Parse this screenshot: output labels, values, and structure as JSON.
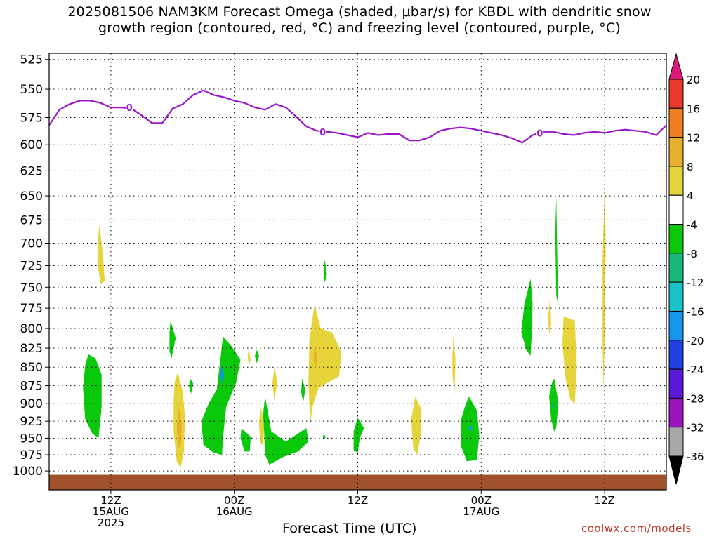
{
  "title_line1": "2025081506 NAM3KM Forecast Omega (shaded, μbar/s) for KBDL with dendritic snow",
  "title_line2": "growth region (contoured, red, °C) and freezing level (contoured, purple, °C)",
  "credit": "coolwx.com/models",
  "chart_data": {
    "type": "heatmap",
    "title": "2025081506 NAM3KM Forecast Omega (shaded, μbar/s) for KBDL with dendritic snow growth region (contoured, red, °C) and freezing level (contoured, purple, °C)",
    "xlabel": "Forecast Time (UTC)",
    "ylabel": "",
    "x_unit": "forecast hour",
    "xlim": [
      0,
      60
    ],
    "ylim_hpa": [
      1030,
      520
    ],
    "y_ticks": [
      525,
      550,
      575,
      600,
      625,
      650,
      675,
      700,
      725,
      750,
      775,
      800,
      825,
      850,
      875,
      900,
      925,
      950,
      975,
      1000
    ],
    "x_ticks": [
      {
        "hour": 6,
        "lines": [
          "12Z",
          "15AUG",
          "2025"
        ]
      },
      {
        "hour": 18,
        "lines": [
          "00Z",
          "16AUG"
        ]
      },
      {
        "hour": 30,
        "lines": [
          "12Z"
        ]
      },
      {
        "hour": 42,
        "lines": [
          "00Z",
          "17AUG"
        ]
      },
      {
        "hour": 54,
        "lines": [
          "12Z"
        ]
      }
    ],
    "colorbar": {
      "labels": [
        "20",
        "16",
        "12",
        "8",
        "4",
        "-4",
        "-8",
        "-12",
        "-16",
        "-20",
        "-24",
        "-28",
        "-32",
        "-36"
      ],
      "colors": [
        "#e0177c",
        "#e8392b",
        "#f07e22",
        "#e8ae2e",
        "#e6d43a",
        "#ffffff",
        "#0ac80a",
        "#1ab87a",
        "#18c3c8",
        "#1496ee",
        "#2040e0",
        "#5a1ad8",
        "#9a14c0",
        "#a8a8a8",
        "#000000"
      ]
    },
    "freezing_level": {
      "label": "0",
      "color": "#9a17c9",
      "points": [
        [
          0,
          582
        ],
        [
          1,
          568
        ],
        [
          2,
          563
        ],
        [
          3,
          560
        ],
        [
          4,
          560
        ],
        [
          5,
          562
        ],
        [
          6,
          566
        ],
        [
          7,
          566
        ],
        [
          8,
          567
        ],
        [
          9,
          573
        ],
        [
          10,
          580
        ],
        [
          11,
          580
        ],
        [
          12,
          567
        ],
        [
          13,
          563
        ],
        [
          14,
          555
        ],
        [
          15,
          551
        ],
        [
          16,
          555
        ],
        [
          17,
          557
        ],
        [
          18,
          560
        ],
        [
          19,
          562
        ],
        [
          20,
          566
        ],
        [
          21,
          568
        ],
        [
          22,
          563
        ],
        [
          23,
          566
        ],
        [
          24,
          574
        ],
        [
          25,
          583
        ],
        [
          26,
          587
        ],
        [
          27,
          588
        ],
        [
          28,
          589
        ],
        [
          29,
          591
        ],
        [
          30,
          593
        ],
        [
          31,
          589
        ],
        [
          32,
          591
        ],
        [
          33,
          590
        ],
        [
          34,
          590
        ],
        [
          35,
          596
        ],
        [
          36,
          596
        ],
        [
          37,
          593
        ],
        [
          38,
          587
        ],
        [
          39,
          585
        ],
        [
          40,
          584
        ],
        [
          41,
          585
        ],
        [
          42,
          587
        ],
        [
          43,
          589
        ],
        [
          44,
          591
        ],
        [
          45,
          594
        ],
        [
          46,
          598
        ],
        [
          47,
          591
        ],
        [
          48,
          588
        ],
        [
          49,
          588
        ],
        [
          50,
          590
        ],
        [
          51,
          591
        ],
        [
          52,
          589
        ],
        [
          53,
          588
        ],
        [
          54,
          589
        ],
        [
          55,
          587
        ],
        [
          56,
          586
        ],
        [
          57,
          587
        ],
        [
          58,
          588
        ],
        [
          59,
          591
        ],
        [
          60,
          582
        ]
      ],
      "label_positions": [
        [
          7.8,
          566
        ],
        [
          26.6,
          588
        ],
        [
          47.7,
          589
        ]
      ]
    },
    "ground_band": {
      "color": "#a0522d",
      "pressure": 1006
    },
    "omega_regions": [
      {
        "level": "4",
        "points": [
          [
            4.9,
            680
          ],
          [
            5.3,
            722
          ],
          [
            5.4,
            743
          ],
          [
            5.0,
            746
          ],
          [
            4.7,
            723
          ],
          [
            4.7,
            700
          ]
        ]
      },
      {
        "level": "-4",
        "points": [
          [
            3.8,
            833
          ],
          [
            4.5,
            838
          ],
          [
            5.1,
            860
          ],
          [
            5.1,
            905
          ],
          [
            4.8,
            950
          ],
          [
            4.2,
            943
          ],
          [
            3.5,
            922
          ],
          [
            3.3,
            878
          ],
          [
            3.5,
            848
          ]
        ]
      },
      {
        "level": "-4",
        "points": [
          [
            11.8,
            790
          ],
          [
            12.3,
            812
          ],
          [
            11.9,
            838
          ],
          [
            11.7,
            829
          ],
          [
            11.7,
            805
          ]
        ]
      },
      {
        "level": "4",
        "points": [
          [
            12.5,
            857
          ],
          [
            13.0,
            884
          ],
          [
            13.2,
            920
          ],
          [
            13.1,
            970
          ],
          [
            12.8,
            995
          ],
          [
            12.4,
            985
          ],
          [
            12.1,
            940
          ],
          [
            12.1,
            895
          ],
          [
            12.2,
            870
          ]
        ]
      },
      {
        "level": "8",
        "points": [
          [
            12.6,
            905
          ],
          [
            12.9,
            930
          ],
          [
            12.8,
            960
          ],
          [
            12.6,
            965
          ],
          [
            12.4,
            935
          ]
        ]
      },
      {
        "level": "-4",
        "points": [
          [
            13.7,
            865
          ],
          [
            14.0,
            872
          ],
          [
            13.8,
            886
          ],
          [
            13.6,
            876
          ]
        ]
      },
      {
        "level": "-4",
        "points": [
          [
            16.9,
            810
          ],
          [
            17.7,
            822
          ],
          [
            18.6,
            840
          ],
          [
            18.2,
            870
          ],
          [
            17.2,
            905
          ],
          [
            16.9,
            950
          ],
          [
            16.8,
            975
          ],
          [
            16.0,
            972
          ],
          [
            15.0,
            960
          ],
          [
            14.8,
            925
          ],
          [
            15.5,
            900
          ],
          [
            16.3,
            880
          ],
          [
            16.6,
            845
          ]
        ]
      },
      {
        "level": "-16",
        "points": [
          [
            16.8,
            848
          ],
          [
            17.0,
            860
          ],
          [
            16.8,
            872
          ],
          [
            16.6,
            860
          ]
        ]
      },
      {
        "level": "4",
        "points": [
          [
            19.4,
            825
          ],
          [
            19.6,
            840
          ],
          [
            19.4,
            848
          ],
          [
            19.3,
            835
          ]
        ]
      },
      {
        "level": "-4",
        "points": [
          [
            20.2,
            827
          ],
          [
            20.4,
            835
          ],
          [
            20.2,
            845
          ],
          [
            20.0,
            835
          ]
        ]
      },
      {
        "level": "-4",
        "points": [
          [
            18.7,
            935
          ],
          [
            19.6,
            948
          ],
          [
            19.5,
            970
          ],
          [
            19.0,
            970
          ],
          [
            18.6,
            950
          ]
        ]
      },
      {
        "level": "4",
        "points": [
          [
            20.6,
            905
          ],
          [
            20.9,
            935
          ],
          [
            20.8,
            962
          ],
          [
            20.5,
            955
          ],
          [
            20.4,
            925
          ]
        ]
      },
      {
        "level": "4",
        "points": [
          [
            21.9,
            850
          ],
          [
            22.2,
            870
          ],
          [
            21.9,
            895
          ],
          [
            21.7,
            872
          ]
        ]
      },
      {
        "level": "-4",
        "points": [
          [
            21.0,
            890
          ],
          [
            21.6,
            940
          ],
          [
            23.0,
            955
          ],
          [
            24.0,
            945
          ],
          [
            25.0,
            935
          ],
          [
            25.2,
            955
          ],
          [
            24.2,
            970
          ],
          [
            22.8,
            978
          ],
          [
            21.4,
            990
          ],
          [
            21.0,
            975
          ],
          [
            20.9,
            940
          ],
          [
            20.8,
            915
          ]
        ]
      },
      {
        "level": "-4",
        "points": [
          [
            24.6,
            865
          ],
          [
            24.9,
            880
          ],
          [
            24.7,
            898
          ],
          [
            24.5,
            884
          ]
        ]
      },
      {
        "level": "4",
        "points": [
          [
            25.8,
            770
          ],
          [
            26.4,
            800
          ],
          [
            27.5,
            805
          ],
          [
            28.4,
            830
          ],
          [
            28.2,
            862
          ],
          [
            27.2,
            870
          ],
          [
            26.2,
            878
          ],
          [
            25.6,
            905
          ],
          [
            25.4,
            928
          ],
          [
            25.2,
            875
          ],
          [
            25.3,
            815
          ]
        ]
      },
      {
        "level": "8",
        "points": [
          [
            25.8,
            822
          ],
          [
            26.1,
            835
          ],
          [
            25.9,
            850
          ],
          [
            25.7,
            840
          ]
        ]
      },
      {
        "level": "-4",
        "points": [
          [
            26.8,
            718
          ],
          [
            27.0,
            735
          ],
          [
            26.8,
            745
          ],
          [
            26.7,
            732
          ]
        ]
      },
      {
        "level": "-4",
        "points": [
          [
            26.7,
            944
          ],
          [
            26.9,
            948
          ],
          [
            26.7,
            952
          ],
          [
            26.6,
            948
          ]
        ]
      },
      {
        "level": "-4",
        "points": [
          [
            30.0,
            920
          ],
          [
            30.6,
            935
          ],
          [
            30.2,
            950
          ],
          [
            30.0,
            972
          ],
          [
            29.6,
            968
          ],
          [
            29.6,
            940
          ]
        ]
      },
      {
        "level": "4",
        "points": [
          [
            35.6,
            890
          ],
          [
            36.2,
            908
          ],
          [
            36.1,
            945
          ],
          [
            35.8,
            975
          ],
          [
            35.4,
            965
          ],
          [
            35.2,
            922
          ]
        ]
      },
      {
        "level": "4",
        "points": [
          [
            39.3,
            810
          ],
          [
            39.5,
            840
          ],
          [
            39.4,
            888
          ],
          [
            39.2,
            858
          ],
          [
            39.2,
            835
          ]
        ]
      },
      {
        "level": "-4",
        "points": [
          [
            40.8,
            890
          ],
          [
            41.6,
            910
          ],
          [
            41.8,
            945
          ],
          [
            41.6,
            983
          ],
          [
            40.6,
            985
          ],
          [
            40.0,
            960
          ],
          [
            40.0,
            925
          ],
          [
            40.4,
            905
          ]
        ]
      },
      {
        "level": "-16",
        "points": [
          [
            40.9,
            928
          ],
          [
            41.1,
            935
          ],
          [
            40.9,
            942
          ],
          [
            40.8,
            935
          ]
        ]
      },
      {
        "level": "-4",
        "points": [
          [
            46.8,
            740
          ],
          [
            47.0,
            770
          ],
          [
            46.9,
            810
          ],
          [
            46.8,
            835
          ],
          [
            46.4,
            828
          ],
          [
            45.9,
            805
          ],
          [
            46.2,
            770
          ]
        ]
      },
      {
        "level": "4",
        "points": [
          [
            48.7,
            760
          ],
          [
            48.8,
            795
          ],
          [
            48.6,
            808
          ],
          [
            48.5,
            785
          ]
        ]
      },
      {
        "level": "-4",
        "points": [
          [
            49.3,
            650
          ],
          [
            49.4,
            720
          ],
          [
            49.5,
            772
          ],
          [
            49.3,
            760
          ],
          [
            49.2,
            690
          ]
        ]
      },
      {
        "level": "4",
        "points": [
          [
            50.0,
            785
          ],
          [
            51.1,
            790
          ],
          [
            51.3,
            850
          ],
          [
            51.1,
            900
          ],
          [
            50.7,
            895
          ],
          [
            50.2,
            865
          ],
          [
            49.9,
            820
          ]
        ]
      },
      {
        "level": "-4",
        "points": [
          [
            49.1,
            865
          ],
          [
            49.5,
            898
          ],
          [
            49.3,
            935
          ],
          [
            49.1,
            940
          ],
          [
            48.8,
            922
          ],
          [
            48.6,
            890
          ],
          [
            48.9,
            870
          ]
        ]
      },
      {
        "level": "-16",
        "points": [
          [
            49.0,
            897
          ],
          [
            49.1,
            903
          ],
          [
            49.0,
            909
          ],
          [
            48.9,
            903
          ]
        ]
      },
      {
        "level": "4",
        "points": [
          [
            54.0,
            640
          ],
          [
            54.1,
            700
          ],
          [
            54.0,
            800
          ],
          [
            53.9,
            885
          ],
          [
            53.8,
            820
          ],
          [
            53.8,
            720
          ]
        ]
      }
    ]
  }
}
